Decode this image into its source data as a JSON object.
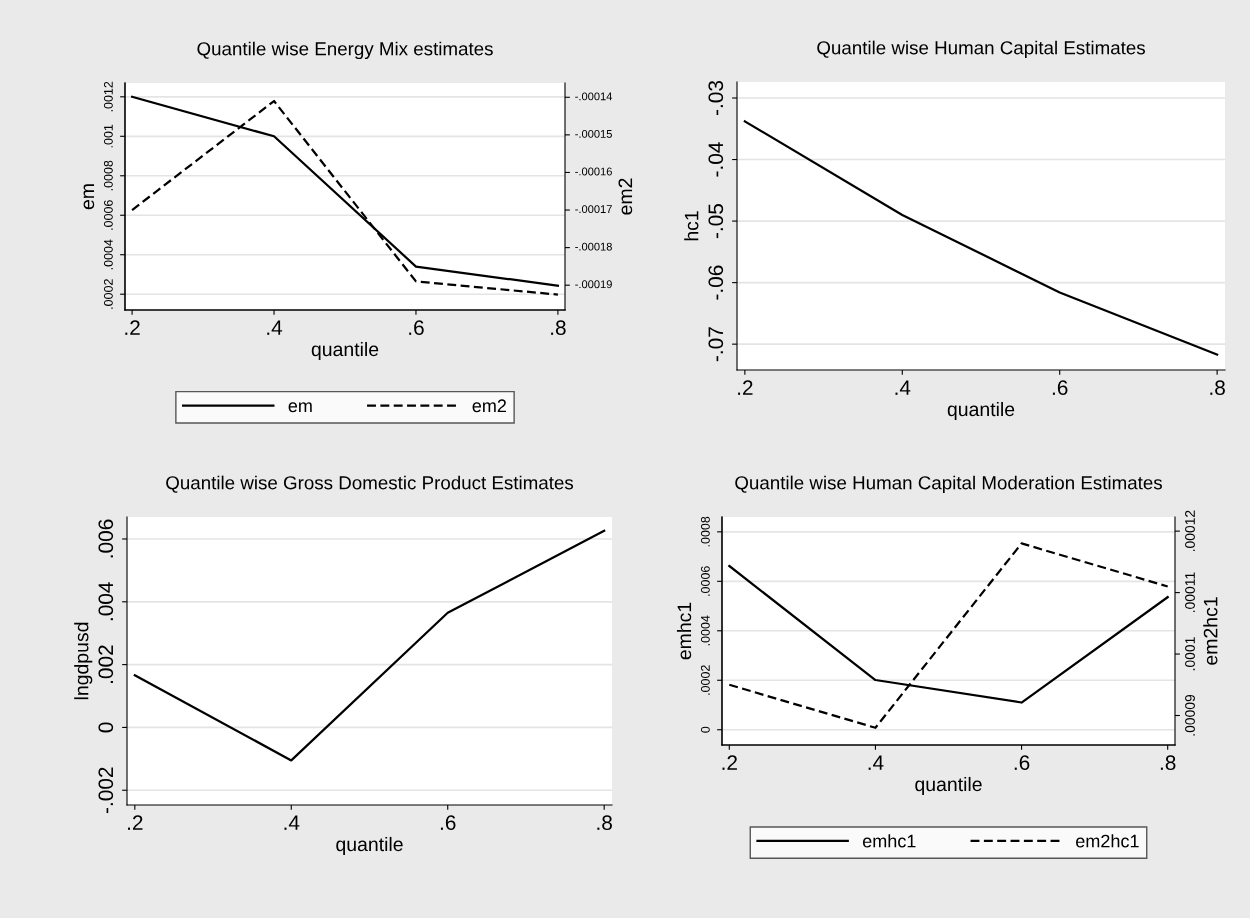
{
  "chart_data": [
    {
      "type": "line",
      "title": "Quantile wise Energy Mix estimates",
      "xlabel": "quantile",
      "ylabel": "em",
      "y2label": "em2",
      "x": [
        0.2,
        0.4,
        0.6,
        0.8
      ],
      "series": [
        {
          "name": "em",
          "color": "#000000",
          "line_style": "solid",
          "values": [
            0.0012,
            0.001,
            0.00034,
            0.000243
          ]
        },
        {
          "name": "em2",
          "color": "#000000",
          "line_style": "dashed",
          "axis": "y2",
          "values": [
            -0.00017,
            -0.000141,
            -0.000189,
            -0.0001925
          ]
        }
      ],
      "xlim": [
        0.19,
        0.81
      ],
      "xticks": [
        {
          "value": 0.2,
          "label": ".2"
        },
        {
          "value": 0.4,
          "label": ".4"
        },
        {
          "value": 0.6,
          "label": ".6"
        },
        {
          "value": 0.8,
          "label": ".8"
        }
      ],
      "ylim": [
        0.00012,
        0.00127
      ],
      "yticks": [
        {
          "value": 0.0002,
          "label": ".0002"
        },
        {
          "value": 0.0004,
          "label": ".0004"
        },
        {
          "value": 0.0006,
          "label": ".0006"
        },
        {
          "value": 0.0008,
          "label": ".0008"
        },
        {
          "value": 0.001,
          "label": ".001"
        },
        {
          "value": 0.0012,
          "label": ".0012"
        }
      ],
      "y2lim": [
        -0.0001966,
        -0.0001362
      ],
      "y2ticks": [
        {
          "value": -0.00019,
          "label": "-.00019"
        },
        {
          "value": -0.00018,
          "label": "-.00018"
        },
        {
          "value": -0.00017,
          "label": "-.00017"
        },
        {
          "value": -0.00016,
          "label": "-.00016"
        },
        {
          "value": -0.00015,
          "label": "-.00015"
        },
        {
          "value": -0.00014,
          "label": "-.00014"
        }
      ],
      "grid": "y",
      "legend": "bottom"
    },
    {
      "type": "line",
      "title": "Quantile wise Human Capital Estimates",
      "xlabel": "quantile",
      "ylabel": "hc1",
      "x": [
        0.2,
        0.4,
        0.6,
        0.8
      ],
      "series": [
        {
          "color": "#000000",
          "line_style": "solid",
          "values": [
            -0.0338,
            -0.049,
            -0.0616,
            -0.0717
          ]
        }
      ],
      "xlim": [
        0.19,
        0.81
      ],
      "xticks": [
        {
          "value": 0.2,
          "label": ".2"
        },
        {
          "value": 0.4,
          "label": ".4"
        },
        {
          "value": 0.6,
          "label": ".6"
        },
        {
          "value": 0.8,
          "label": ".8"
        }
      ],
      "ylim": [
        -0.0742,
        -0.0274
      ],
      "yticks": [
        {
          "value": -0.07,
          "label": "-.07"
        },
        {
          "value": -0.06,
          "label": "-.06"
        },
        {
          "value": -0.05,
          "label": "-.05"
        },
        {
          "value": -0.04,
          "label": "-.04"
        },
        {
          "value": -0.03,
          "label": "-.03"
        }
      ],
      "grid": "y"
    },
    {
      "type": "line",
      "title": "Quantile wise Gross Domestic Product Estimates",
      "xlabel": "quantile",
      "ylabel": "lngdpusd",
      "x": [
        0.2,
        0.4,
        0.6,
        0.8
      ],
      "series": [
        {
          "color": "#000000",
          "line_style": "solid",
          "values": [
            0.00166,
            -0.00105,
            0.00365,
            0.00626
          ]
        }
      ],
      "xlim": [
        0.19,
        0.81
      ],
      "xticks": [
        {
          "value": 0.2,
          "label": ".2"
        },
        {
          "value": 0.4,
          "label": ".4"
        },
        {
          "value": 0.6,
          "label": ".6"
        },
        {
          "value": 0.8,
          "label": ".8"
        }
      ],
      "ylim": [
        -0.00247,
        0.0067
      ],
      "yticks": [
        {
          "value": -0.002,
          "label": "-.002"
        },
        0,
        {
          "value": 0.002,
          "label": ".002"
        },
        {
          "value": 0.004,
          "label": ".004"
        },
        {
          "value": 0.006,
          "label": ".006"
        }
      ],
      "grid": "y"
    },
    {
      "type": "line",
      "title": "Quantile wise Human Capital Moderation Estimates",
      "xlabel": "quantile",
      "ylabel": "emhc1",
      "y2label": "em2hc1",
      "x": [
        0.2,
        0.4,
        0.6,
        0.8
      ],
      "series": [
        {
          "name": "emhc1",
          "color": "#000000",
          "line_style": "solid",
          "values": [
            0.000662,
            0.000201,
            0.00011,
            0.000536
          ]
        },
        {
          "name": "em2hc1",
          "color": "#000000",
          "line_style": "dashed",
          "axis": "y2",
          "values": [
            9.5e-05,
            8.8e-05,
            0.000118,
            0.000111
          ]
        }
      ],
      "xlim": [
        0.19,
        0.81
      ],
      "xticks": [
        {
          "value": 0.2,
          "label": ".2"
        },
        {
          "value": 0.4,
          "label": ".4"
        },
        {
          "value": 0.6,
          "label": ".6"
        },
        {
          "value": 0.8,
          "label": ".8"
        }
      ],
      "ylim": [
        -6.17e-05,
        0.00086
      ],
      "yticks": [
        0,
        {
          "value": 0.0002,
          "label": ".0002"
        },
        {
          "value": 0.0004,
          "label": ".0004"
        },
        {
          "value": 0.0006,
          "label": ".0006"
        },
        {
          "value": 0.0008,
          "label": ".0008"
        }
      ],
      "y2lim": [
        8.52e-05,
        0.0001223
      ],
      "y2ticks": [
        {
          "value": 9e-05,
          "label": ".00009"
        },
        {
          "value": 0.0001,
          "label": ".0001"
        },
        {
          "value": 0.00011,
          "label": ".00011"
        },
        {
          "value": 0.00012,
          "label": ".00012"
        }
      ],
      "grid": "y",
      "legend": "bottom"
    }
  ]
}
